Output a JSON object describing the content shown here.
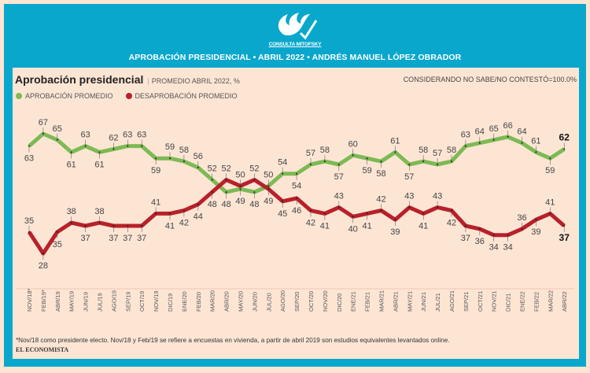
{
  "header": {
    "logo_text": "CONSULTA MITOFSKY",
    "banner": "APROBACIÓN PRESIDENCIAL • ABRIL 2022 • ANDRÉS MANUEL LÓPEZ OBRADOR"
  },
  "footer": {
    "footnote": "*Nov/18 como presidente electo. Nov/18 y Feb/19 se refiere a encuestas en vivienda, a partir de abril 2019 son estudios equivalentes levantados online.",
    "brand": "EL ECONOMISTA"
  },
  "colors": {
    "frame": "#0aa7cd",
    "background": "#fde5d4",
    "approval": "#7dba54",
    "disapproval": "#b8202a"
  },
  "chart_data": {
    "type": "line",
    "title": "Aprobación presidencial",
    "subtitle": "PROMEDIO ABRIL 2022, %",
    "note": "CONSIDERANDO NO SABE/NO CONTESTÓ=100.0%",
    "legend_position": "top-left",
    "grid": false,
    "categories": [
      "NOV/18*",
      "FEB/19*",
      "ABR/19",
      "MAY/19",
      "JUN/19",
      "JUL/19",
      "AGO/19",
      "SEP/19",
      "OCT/19",
      "NOV/19",
      "DIC/19",
      "ENE/20",
      "FEB/20",
      "MAR/20",
      "ABR/20",
      "MAY/20",
      "JUN/20",
      "JUL/20",
      "AGO/20",
      "SEP/20",
      "OCT/20",
      "NOV/20",
      "DIC/20",
      "ENE/21",
      "FEB/21",
      "MAR/21",
      "ABR/21",
      "MAY/21",
      "JUN/21",
      "JUL/21",
      "AGO/21",
      "SEP/21",
      "OCT/21",
      "NOV/21",
      "DIC/21",
      "ENE/22",
      "FEB/22",
      "MAR/22",
      "ABR/22"
    ],
    "series": [
      {
        "name": "APROBACIÓN PROMEDIO",
        "color": "#7dba54",
        "values": [
          63,
          67,
          65,
          61,
          63,
          61,
          62,
          63,
          63,
          59,
          59,
          58,
          56,
          52,
          48,
          49,
          48,
          50,
          54,
          54,
          57,
          58,
          57,
          60,
          59,
          58,
          61,
          57,
          58,
          57,
          58,
          63,
          64,
          65,
          66,
          64,
          61,
          59,
          62
        ]
      },
      {
        "name": "DESAPROBACIÓN PROMEDIO",
        "color": "#b8202a",
        "values": [
          35,
          28,
          35,
          38,
          37,
          38,
          37,
          37,
          37,
          41,
          41,
          42,
          44,
          48,
          52,
          50,
          52,
          49,
          45,
          46,
          42,
          41,
          43,
          40,
          41,
          42,
          39,
          43,
          41,
          43,
          42,
          37,
          36,
          34,
          34,
          36,
          39,
          41,
          37
        ]
      }
    ]
  }
}
